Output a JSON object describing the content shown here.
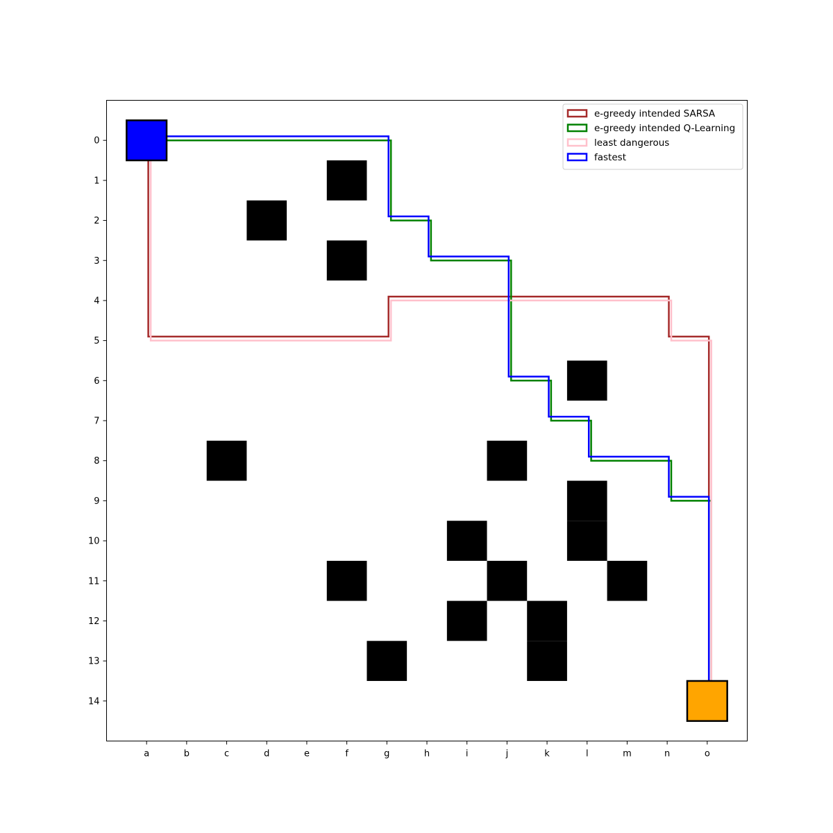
{
  "chart_data": {
    "type": "grid-path-map",
    "grid": {
      "rows": 15,
      "cols": 15
    },
    "x_tick_labels": [
      "a",
      "b",
      "c",
      "d",
      "e",
      "f",
      "g",
      "h",
      "i",
      "j",
      "k",
      "l",
      "m",
      "n",
      "o"
    ],
    "y_tick_labels": [
      "0",
      "1",
      "2",
      "3",
      "4",
      "5",
      "6",
      "7",
      "8",
      "9",
      "10",
      "11",
      "12",
      "13",
      "14"
    ],
    "start": {
      "col": 0,
      "row": 0,
      "color": "#0000ff"
    },
    "goal": {
      "col": 14,
      "row": 14,
      "color": "#ffa500"
    },
    "obstacles": [
      [
        5,
        1
      ],
      [
        3,
        2
      ],
      [
        5,
        3
      ],
      [
        11,
        6
      ],
      [
        2,
        8
      ],
      [
        9,
        8
      ],
      [
        11,
        9
      ],
      [
        11,
        10
      ],
      [
        8,
        10
      ],
      [
        5,
        11
      ],
      [
        9,
        11
      ],
      [
        12,
        11
      ],
      [
        8,
        12
      ],
      [
        10,
        12
      ],
      [
        10,
        13
      ],
      [
        6,
        13
      ]
    ],
    "paths": [
      {
        "name": "e-greedy intended SARSA",
        "color": "#a52a2a",
        "points": [
          [
            0,
            0
          ],
          [
            0,
            5
          ],
          [
            6,
            5
          ],
          [
            6,
            4
          ],
          [
            13,
            4
          ],
          [
            13,
            5
          ],
          [
            14,
            5
          ],
          [
            14,
            14
          ]
        ]
      },
      {
        "name": "e-greedy intended Q-Learning",
        "color": "#008000",
        "points": [
          [
            0,
            0
          ],
          [
            6,
            0
          ],
          [
            6,
            2
          ],
          [
            7,
            2
          ],
          [
            7,
            3
          ],
          [
            9,
            3
          ],
          [
            9,
            6
          ],
          [
            10,
            6
          ],
          [
            10,
            7
          ],
          [
            11,
            7
          ],
          [
            11,
            8
          ],
          [
            13,
            8
          ],
          [
            13,
            9
          ],
          [
            14,
            9
          ],
          [
            14,
            14
          ]
        ]
      },
      {
        "name": "least dangerous",
        "color": "#ffc0cb",
        "points": [
          [
            0,
            0
          ],
          [
            0,
            5
          ],
          [
            6,
            5
          ],
          [
            6,
            4
          ],
          [
            13,
            4
          ],
          [
            13,
            5
          ],
          [
            14,
            5
          ],
          [
            14,
            14
          ]
        ]
      },
      {
        "name": "fastest",
        "color": "#0000ff",
        "points": [
          [
            0,
            0
          ],
          [
            6,
            0
          ],
          [
            6,
            2
          ],
          [
            7,
            2
          ],
          [
            7,
            3
          ],
          [
            9,
            3
          ],
          [
            9,
            6
          ],
          [
            10,
            6
          ],
          [
            10,
            7
          ],
          [
            11,
            7
          ],
          [
            11,
            8
          ],
          [
            13,
            8
          ],
          [
            13,
            9
          ],
          [
            14,
            9
          ],
          [
            14,
            14
          ]
        ]
      }
    ],
    "legend_position": "top-right"
  }
}
